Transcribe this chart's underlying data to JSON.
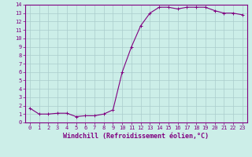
{
  "x": [
    0,
    1,
    2,
    3,
    4,
    5,
    6,
    7,
    8,
    9,
    10,
    11,
    12,
    13,
    14,
    15,
    16,
    17,
    18,
    19,
    20,
    21,
    22,
    23
  ],
  "y": [
    1.7,
    1.0,
    1.0,
    1.1,
    1.1,
    0.7,
    0.8,
    0.8,
    1.0,
    1.5,
    6.0,
    9.0,
    11.5,
    13.0,
    13.7,
    13.7,
    13.5,
    13.7,
    13.7,
    13.7,
    13.3,
    13.0,
    13.0,
    12.8
  ],
  "line_color": "#800080",
  "marker": "+",
  "marker_size": 3,
  "bg_color": "#cceee8",
  "grid_color": "#aacccc",
  "xlabel": "Windchill (Refroidissement éolien,°C)",
  "xlim": [
    -0.5,
    23.5
  ],
  "ylim": [
    0,
    14
  ],
  "xticks": [
    0,
    1,
    2,
    3,
    4,
    5,
    6,
    7,
    8,
    9,
    10,
    11,
    12,
    13,
    14,
    15,
    16,
    17,
    18,
    19,
    20,
    21,
    22,
    23
  ],
  "yticks": [
    0,
    1,
    2,
    3,
    4,
    5,
    6,
    7,
    8,
    9,
    10,
    11,
    12,
    13,
    14
  ],
  "tick_color": "#800080",
  "tick_fontsize": 5.0,
  "xlabel_fontsize": 6.0,
  "line_width": 0.8,
  "axis_color": "#800080"
}
